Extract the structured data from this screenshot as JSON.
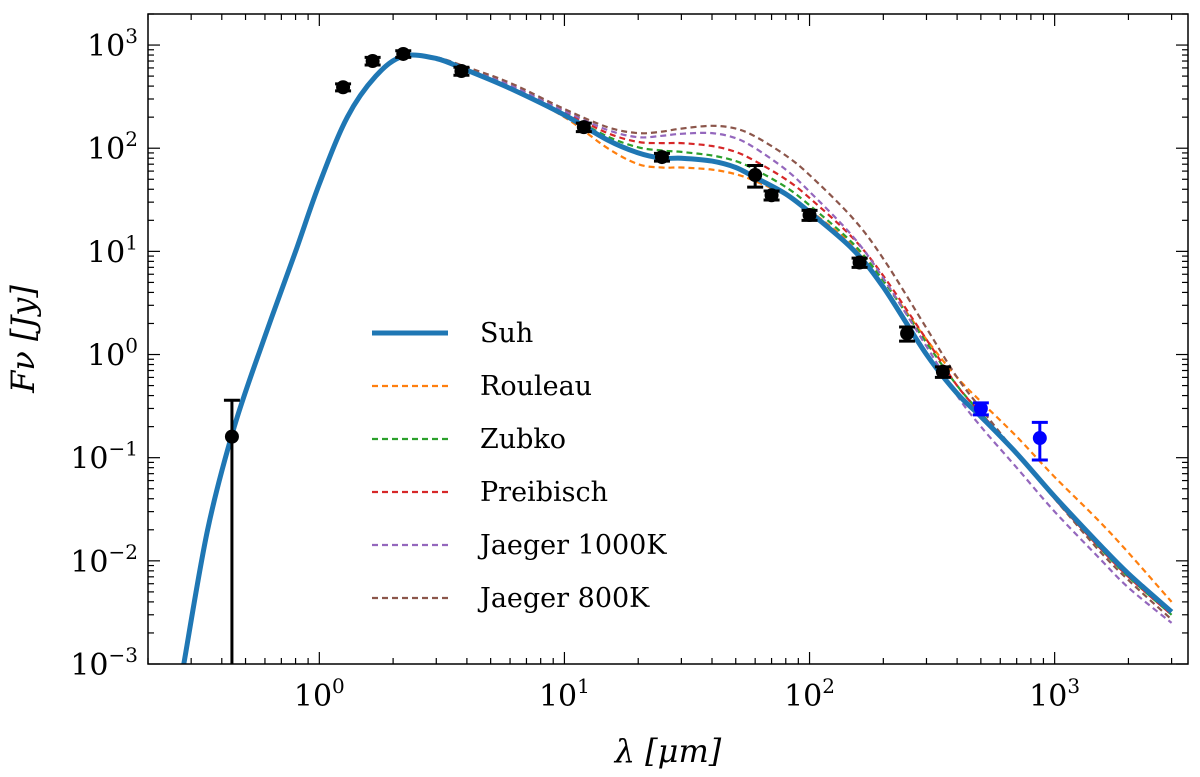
{
  "chart_data": {
    "type": "line",
    "title": "",
    "xlabel": "λ [μm]",
    "ylabel": "Fν [Jy]",
    "xscale": "log",
    "yscale": "log",
    "xlim": [
      0.2,
      3500
    ],
    "ylim": [
      0.001,
      2000
    ],
    "x_ticks": [
      {
        "value": 1,
        "label": "10",
        "exp": "0"
      },
      {
        "value": 10,
        "label": "10",
        "exp": "1"
      },
      {
        "value": 100,
        "label": "10",
        "exp": "2"
      },
      {
        "value": 1000,
        "label": "10",
        "exp": "3"
      }
    ],
    "y_ticks": [
      {
        "value": 0.001,
        "label": "10",
        "exp": "−3"
      },
      {
        "value": 0.01,
        "label": "10",
        "exp": "−2"
      },
      {
        "value": 0.1,
        "label": "10",
        "exp": "−1"
      },
      {
        "value": 1,
        "label": "10",
        "exp": "0"
      },
      {
        "value": 10,
        "label": "10",
        "exp": "1"
      },
      {
        "value": 100,
        "label": "10",
        "exp": "2"
      },
      {
        "value": 1000,
        "label": "10",
        "exp": "3"
      }
    ],
    "legend_position": "lower-left",
    "series": [
      {
        "name": "Suh",
        "color": "#1f77b4",
        "style": "solid",
        "x": [
          0.28,
          0.35,
          0.45,
          0.6,
          0.8,
          1.0,
          1.3,
          1.7,
          2.2,
          3.0,
          4.0,
          6.0,
          10,
          15,
          20,
          25,
          30,
          40,
          50,
          60,
          80,
          100,
          150,
          200,
          300,
          400,
          500,
          700,
          1000,
          1500,
          2000,
          3000
        ],
        "y": [
          0.001,
          0.02,
          0.2,
          1.5,
          10,
          45,
          200,
          500,
          780,
          740,
          570,
          380,
          210,
          120,
          90,
          80,
          80,
          75,
          65,
          52,
          36,
          24,
          10.5,
          4.5,
          1.0,
          0.42,
          0.25,
          0.11,
          0.042,
          0.015,
          0.0075,
          0.0032
        ]
      },
      {
        "name": "Rouleau",
        "color": "#ff7f0e",
        "style": "dashed",
        "x": [
          0.28,
          0.35,
          0.45,
          0.6,
          0.8,
          1.0,
          1.3,
          1.7,
          2.2,
          3.0,
          4.0,
          6.0,
          10,
          15,
          20,
          25,
          30,
          40,
          50,
          60,
          80,
          100,
          150,
          200,
          300,
          400,
          500,
          700,
          1000,
          1500,
          2000,
          3000
        ],
        "y": [
          0.001,
          0.02,
          0.2,
          1.5,
          10,
          45,
          200,
          500,
          780,
          740,
          570,
          380,
          200,
          100,
          70,
          65,
          65,
          62,
          56,
          48,
          35,
          25,
          11.5,
          5.2,
          1.4,
          0.6,
          0.35,
          0.16,
          0.065,
          0.025,
          0.012,
          0.004
        ]
      },
      {
        "name": "Zubko",
        "color": "#2ca02c",
        "style": "dashed",
        "x": [
          0.28,
          0.35,
          0.45,
          0.6,
          0.8,
          1.0,
          1.3,
          1.7,
          2.2,
          3.0,
          4.0,
          6.0,
          10,
          15,
          20,
          25,
          30,
          40,
          50,
          60,
          80,
          100,
          150,
          200,
          300,
          400,
          500,
          700,
          1000,
          1500,
          2000,
          3000
        ],
        "y": [
          0.001,
          0.02,
          0.2,
          1.5,
          10,
          45,
          200,
          500,
          780,
          740,
          575,
          390,
          215,
          130,
          102,
          95,
          92,
          85,
          75,
          62,
          42,
          28,
          12,
          5.2,
          1.3,
          0.5,
          0.27,
          0.11,
          0.04,
          0.014,
          0.007,
          0.003
        ]
      },
      {
        "name": "Preibisch",
        "color": "#d62728",
        "style": "dashed",
        "x": [
          0.28,
          0.35,
          0.45,
          0.6,
          0.8,
          1.0,
          1.3,
          1.7,
          2.2,
          3.0,
          4.0,
          6.0,
          10,
          15,
          20,
          25,
          30,
          40,
          50,
          60,
          80,
          100,
          150,
          200,
          300,
          400,
          500,
          700,
          1000,
          1500,
          2000,
          3000
        ],
        "y": [
          0.001,
          0.02,
          0.2,
          1.5,
          10,
          45,
          200,
          500,
          780,
          745,
          580,
          400,
          225,
          140,
          115,
          112,
          112,
          105,
          92,
          75,
          50,
          33,
          13.5,
          5.8,
          1.4,
          0.5,
          0.27,
          0.11,
          0.04,
          0.014,
          0.007,
          0.003
        ]
      },
      {
        "name": "Jaeger 1000K",
        "color": "#9467bd",
        "style": "dashed",
        "x": [
          0.28,
          0.35,
          0.45,
          0.6,
          0.8,
          1.0,
          1.3,
          1.7,
          2.2,
          3.0,
          4.0,
          6.0,
          10,
          15,
          20,
          25,
          30,
          40,
          50,
          60,
          80,
          100,
          150,
          200,
          300,
          400,
          500,
          700,
          1000,
          1500,
          2000,
          3000
        ],
        "y": [
          0.001,
          0.02,
          0.2,
          1.5,
          10,
          45,
          200,
          500,
          780,
          750,
          590,
          410,
          230,
          150,
          128,
          132,
          138,
          140,
          125,
          100,
          62,
          38,
          14,
          5.5,
          1.2,
          0.4,
          0.2,
          0.08,
          0.03,
          0.011,
          0.0055,
          0.0025
        ]
      },
      {
        "name": "Jaeger 800K",
        "color": "#8c564b",
        "style": "dashed",
        "x": [
          0.28,
          0.35,
          0.45,
          0.6,
          0.8,
          1.0,
          1.3,
          1.7,
          2.2,
          3.0,
          4.0,
          6.0,
          10,
          15,
          20,
          25,
          30,
          40,
          50,
          60,
          80,
          100,
          150,
          200,
          300,
          400,
          500,
          700,
          1000,
          1500,
          2000,
          3000
        ],
        "y": [
          0.001,
          0.02,
          0.2,
          1.5,
          10,
          45,
          200,
          500,
          790,
          760,
          610,
          430,
          240,
          160,
          140,
          145,
          155,
          165,
          155,
          130,
          85,
          55,
          21,
          8.5,
          1.8,
          0.6,
          0.3,
          0.11,
          0.04,
          0.013,
          0.0065,
          0.0027
        ]
      }
    ],
    "observations": [
      {
        "name": "photometry",
        "color": "#000000",
        "points": [
          {
            "x": 0.44,
            "y": 0.16,
            "yerr_low": 0.16,
            "yerr_high": 0.2
          },
          {
            "x": 1.25,
            "y": 390,
            "yerr_low": 30,
            "yerr_high": 30
          },
          {
            "x": 1.65,
            "y": 700,
            "yerr_low": 60,
            "yerr_high": 60
          },
          {
            "x": 2.2,
            "y": 820,
            "yerr_low": 60,
            "yerr_high": 60
          },
          {
            "x": 3.8,
            "y": 560,
            "yerr_low": 50,
            "yerr_high": 50
          },
          {
            "x": 12,
            "y": 160,
            "yerr_low": 15,
            "yerr_high": 15
          },
          {
            "x": 25,
            "y": 82,
            "yerr_low": 7,
            "yerr_high": 7
          },
          {
            "x": 60,
            "y": 55,
            "yerr_low": 13,
            "yerr_high": 13
          },
          {
            "x": 70,
            "y": 35,
            "yerr_low": 3.5,
            "yerr_high": 3.5
          },
          {
            "x": 100,
            "y": 22.5,
            "yerr_low": 2.5,
            "yerr_high": 2.5
          },
          {
            "x": 160,
            "y": 7.8,
            "yerr_low": 0.8,
            "yerr_high": 0.8
          },
          {
            "x": 250,
            "y": 1.6,
            "yerr_low": 0.25,
            "yerr_high": 0.25
          },
          {
            "x": 350,
            "y": 0.68,
            "yerr_low": 0.08,
            "yerr_high": 0.08
          }
        ]
      },
      {
        "name": "submm",
        "color": "#0000ff",
        "points": [
          {
            "x": 500,
            "y": 0.3,
            "yerr_low": 0.04,
            "yerr_high": 0.04
          },
          {
            "x": 870,
            "y": 0.155,
            "yerr_low": 0.06,
            "yerr_high": 0.065
          }
        ]
      }
    ]
  }
}
